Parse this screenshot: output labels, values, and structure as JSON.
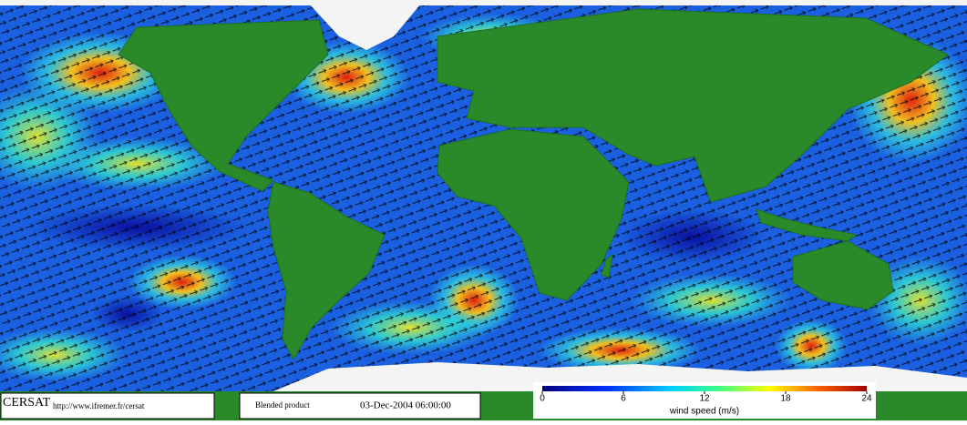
{
  "footer": {
    "logo": "CERSAT",
    "url": "http://www.ifremer.fr/cersat",
    "product": "Blended product",
    "timestamp": "03-Dec-2004 06:00:00"
  },
  "colorbar": {
    "label": "wind speed (m/s)",
    "lim": [
      0,
      24
    ],
    "ticks": [
      0,
      6,
      12,
      18,
      24
    ]
  }
}
